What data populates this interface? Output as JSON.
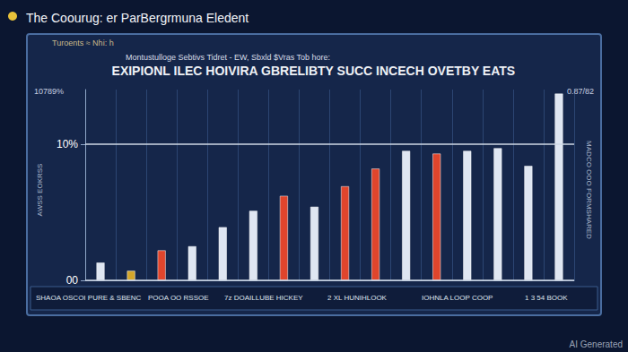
{
  "chart_data": {
    "type": "bar",
    "title": "The Coourug: er ParBergrmuna Eledent",
    "subtitle": "EXIPIONL ILEC HOIVIRA GBRELIBTY SUCC INCECH OVETBY EATS",
    "annotations": [
      "Turoents ≈ Nhi: h",
      "Montustulloge Sebtivs Tidret - EW, Sbxld $Vras Tob hore:",
      "10789%",
      "0.87/82",
      "AWSS EOKRSS",
      "MADCO OOO FORMSHARED",
      "SHAOA OSCOI PURE & SBENC",
      "POOA OO RSSOE",
      "7z DOAILLUBE HICKEY",
      "2 XL HUNIHLOOK",
      "IOHNLA LOOP COOP",
      "1 3 54 BOOK",
      "AI Generated"
    ],
    "categories": [
      null,
      null,
      null,
      null,
      null,
      null,
      null,
      null,
      null,
      null,
      null,
      null,
      null,
      null,
      null,
      null
    ],
    "values": [
      1.3,
      0.7,
      2.2,
      2.5,
      3.9,
      5.1,
      6.2,
      5.4,
      6.9,
      8.2,
      9.5,
      9.3,
      9.5,
      9.7,
      8.4,
      13.7
    ],
    "colors": [
      "#dfe6f2",
      "#d4a62a",
      "#e0452c",
      "#dfe6f2",
      "#dfe6f2",
      "#dfe6f2",
      "#e0452c",
      "#dfe6f2",
      "#e0452c",
      "#e0452c",
      "#dfe6f2",
      "#e0452c",
      "#dfe6f2",
      "#dfe6f2",
      "#dfe6f2",
      "#dfe6f2"
    ],
    "ylim": [
      0,
      14
    ],
    "yticks": [
      {
        "value": 0,
        "label": "00"
      },
      {
        "value": 10,
        "label": "10%"
      }
    ],
    "grid": true,
    "tick_labels": "y",
    "data_labels": false
  }
}
